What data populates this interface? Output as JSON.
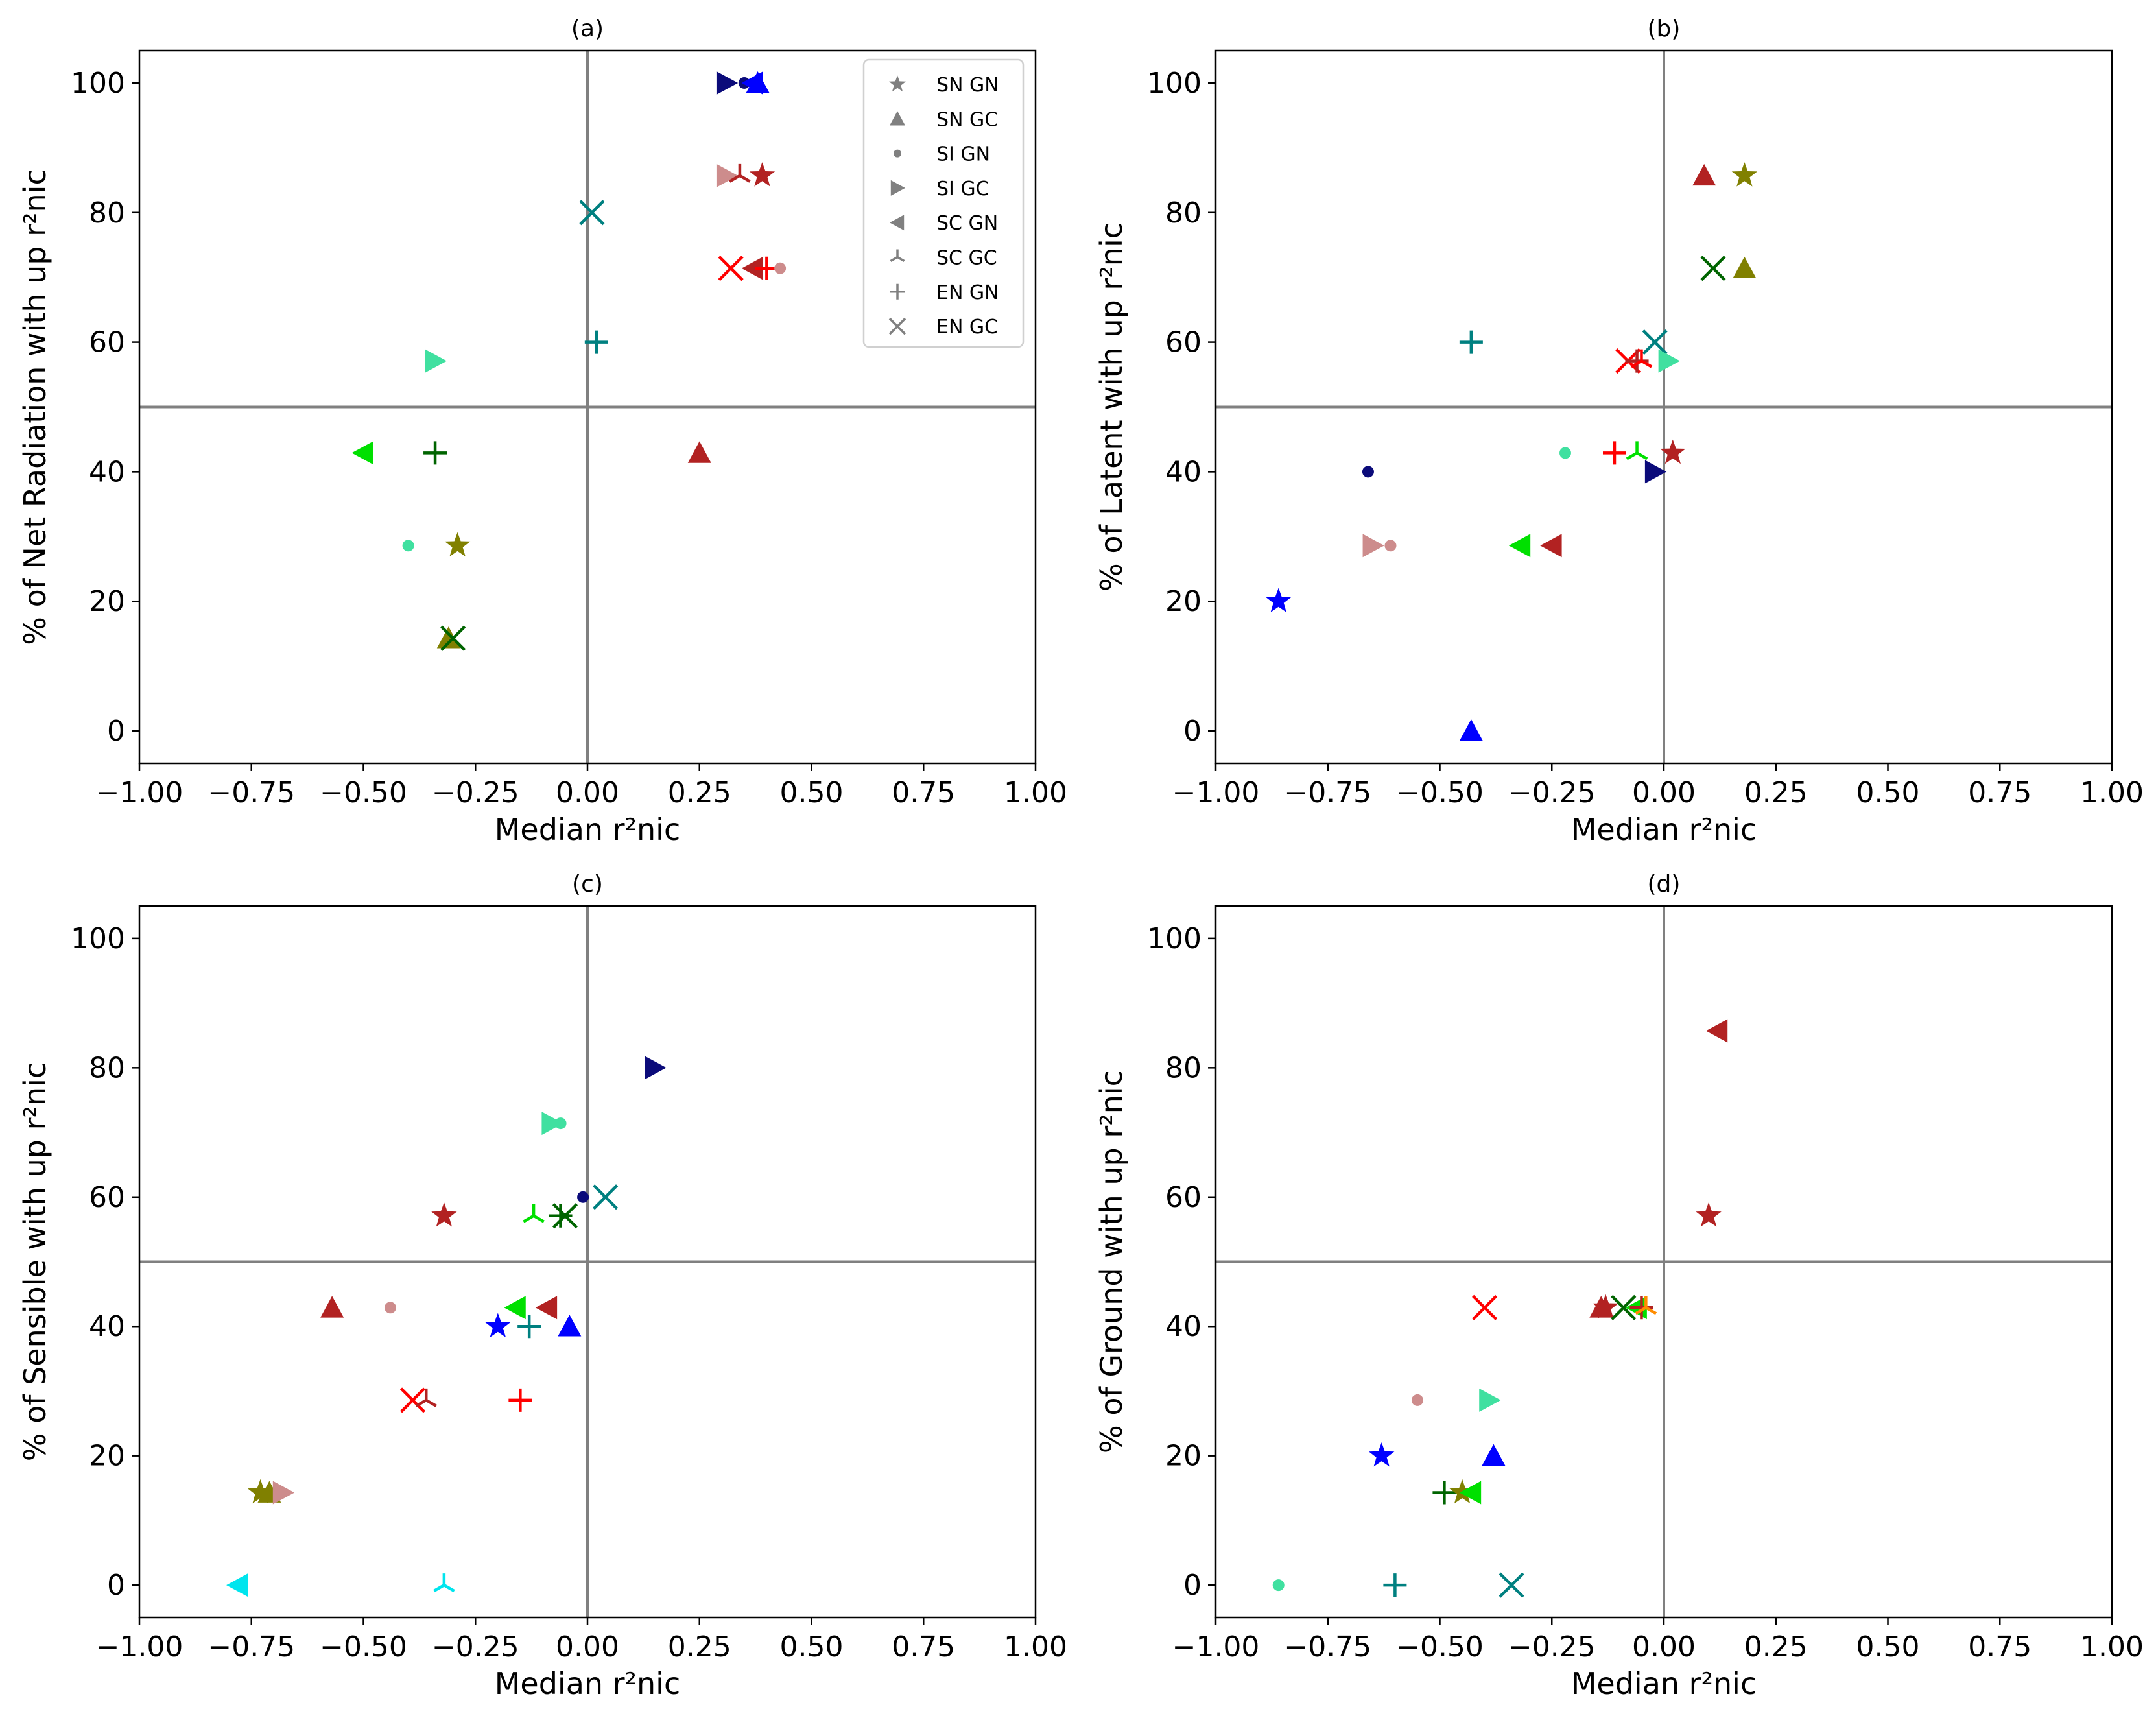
{
  "figure": {
    "xlabel": "Median r²nic",
    "xlim": [
      -1.0,
      1.0
    ],
    "ylim": [
      -5,
      105
    ],
    "xticks": [
      "−1.00",
      "−0.75",
      "−0.50",
      "−0.25",
      "0.00",
      "0.25",
      "0.50",
      "0.75",
      "1.00"
    ],
    "yticks": [
      "0",
      "20",
      "40",
      "60",
      "80",
      "100"
    ],
    "reference_lines": {
      "x": 0,
      "y": 50,
      "color": "#808080"
    }
  },
  "legend": [
    {
      "label": "SN GN",
      "marker": "star"
    },
    {
      "label": "SN GC",
      "marker": "triangle-up"
    },
    {
      "label": "SI GN",
      "marker": "dot"
    },
    {
      "label": "SI GC",
      "marker": "triangle-right"
    },
    {
      "label": "SC GN",
      "marker": "triangle-left"
    },
    {
      "label": "SC GC",
      "marker": "tri-down"
    },
    {
      "label": "EN GN",
      "marker": "plus"
    },
    {
      "label": "EN GC",
      "marker": "x"
    }
  ],
  "legend_color": "#808080",
  "chart_data": [
    {
      "type": "scatter",
      "title": "(a)",
      "xlabel": "Median r²nic",
      "ylabel": "% of Net Radiation with up r²nic",
      "xlim": [
        -1.0,
        1.0
      ],
      "ylim": [
        -5,
        105
      ],
      "points": [
        {
          "x": 0.31,
          "y": 100,
          "marker": "triangle-right",
          "color": "#0b0b7a"
        },
        {
          "x": 0.35,
          "y": 100,
          "marker": "dot",
          "color": "#0b0b7a"
        },
        {
          "x": 0.37,
          "y": 100,
          "marker": "triangle-left",
          "color": "#0000ff"
        },
        {
          "x": 0.38,
          "y": 100,
          "marker": "triangle-up",
          "color": "#0000ff"
        },
        {
          "x": 0.31,
          "y": 85.7,
          "marker": "triangle-right",
          "color": "#cd8c8c"
        },
        {
          "x": 0.34,
          "y": 85.7,
          "marker": "tri-down",
          "color": "#b22222"
        },
        {
          "x": 0.39,
          "y": 85.7,
          "marker": "star",
          "color": "#b22222"
        },
        {
          "x": 0.32,
          "y": 71.4,
          "marker": "x",
          "color": "#ff0000"
        },
        {
          "x": 0.37,
          "y": 71.4,
          "marker": "triangle-left",
          "color": "#b22222"
        },
        {
          "x": 0.4,
          "y": 71.4,
          "marker": "plus",
          "color": "#ff0000"
        },
        {
          "x": 0.43,
          "y": 71.4,
          "marker": "dot",
          "color": "#cd8c8c"
        },
        {
          "x": 0.01,
          "y": 80,
          "marker": "x",
          "color": "#008080"
        },
        {
          "x": 0.02,
          "y": 60,
          "marker": "plus",
          "color": "#008080"
        },
        {
          "x": -0.34,
          "y": 57.1,
          "marker": "triangle-right",
          "color": "#40e0a0"
        },
        {
          "x": -0.5,
          "y": 42.9,
          "marker": "triangle-left",
          "color": "#00e000"
        },
        {
          "x": -0.34,
          "y": 42.9,
          "marker": "plus",
          "color": "#006400"
        },
        {
          "x": 0.25,
          "y": 42.9,
          "marker": "triangle-up",
          "color": "#b22222"
        },
        {
          "x": -0.4,
          "y": 28.6,
          "marker": "dot",
          "color": "#40e0a0"
        },
        {
          "x": -0.29,
          "y": 28.6,
          "marker": "star",
          "color": "#808000"
        },
        {
          "x": -0.31,
          "y": 14.3,
          "marker": "triangle-up",
          "color": "#808000"
        },
        {
          "x": -0.3,
          "y": 14.3,
          "marker": "x",
          "color": "#006400"
        }
      ]
    },
    {
      "type": "scatter",
      "title": "(b)",
      "xlabel": "Median r²nic",
      "ylabel": "% of Latent with up r²nic",
      "xlim": [
        -1.0,
        1.0
      ],
      "ylim": [
        -5,
        105
      ],
      "points": [
        {
          "x": 0.09,
          "y": 85.7,
          "marker": "triangle-up",
          "color": "#b22222"
        },
        {
          "x": 0.18,
          "y": 85.7,
          "marker": "star",
          "color": "#808000"
        },
        {
          "x": 0.11,
          "y": 71.4,
          "marker": "x",
          "color": "#006400"
        },
        {
          "x": 0.18,
          "y": 71.4,
          "marker": "triangle-up",
          "color": "#808000"
        },
        {
          "x": -0.43,
          "y": 60,
          "marker": "plus",
          "color": "#008080"
        },
        {
          "x": -0.02,
          "y": 60,
          "marker": "x",
          "color": "#008080"
        },
        {
          "x": -0.08,
          "y": 57.1,
          "marker": "x",
          "color": "#ff0000"
        },
        {
          "x": -0.06,
          "y": 57.1,
          "marker": "plus",
          "color": "#b22222"
        },
        {
          "x": -0.05,
          "y": 57.1,
          "marker": "tri-down",
          "color": "#ff0000"
        },
        {
          "x": 0.01,
          "y": 57.1,
          "marker": "triangle-right",
          "color": "#40e0a0"
        },
        {
          "x": -0.66,
          "y": 40,
          "marker": "dot",
          "color": "#0b0b7a"
        },
        {
          "x": -0.02,
          "y": 40,
          "marker": "triangle-right",
          "color": "#0b0b7a"
        },
        {
          "x": -0.22,
          "y": 42.9,
          "marker": "dot",
          "color": "#40e0a0"
        },
        {
          "x": -0.11,
          "y": 42.9,
          "marker": "plus",
          "color": "#ff0000"
        },
        {
          "x": -0.06,
          "y": 42.9,
          "marker": "tri-down",
          "color": "#00e000"
        },
        {
          "x": 0.02,
          "y": 42.9,
          "marker": "star",
          "color": "#b22222"
        },
        {
          "x": -0.65,
          "y": 28.6,
          "marker": "triangle-right",
          "color": "#cd8c8c"
        },
        {
          "x": -0.61,
          "y": 28.6,
          "marker": "dot",
          "color": "#cd8c8c"
        },
        {
          "x": -0.32,
          "y": 28.6,
          "marker": "triangle-left",
          "color": "#00e000"
        },
        {
          "x": -0.25,
          "y": 28.6,
          "marker": "triangle-left",
          "color": "#b22222"
        },
        {
          "x": -0.86,
          "y": 20,
          "marker": "star",
          "color": "#0000ff"
        },
        {
          "x": -0.43,
          "y": 0,
          "marker": "triangle-up",
          "color": "#0000ff"
        }
      ]
    },
    {
      "type": "scatter",
      "title": "(c)",
      "xlabel": "Median r²nic",
      "ylabel": "% of Sensible with up r²nic",
      "xlim": [
        -1.0,
        1.0
      ],
      "ylim": [
        -5,
        105
      ],
      "points": [
        {
          "x": 0.15,
          "y": 80,
          "marker": "triangle-right",
          "color": "#0b0b7a"
        },
        {
          "x": -0.08,
          "y": 71.4,
          "marker": "triangle-right",
          "color": "#40e0a0"
        },
        {
          "x": -0.06,
          "y": 71.4,
          "marker": "dot",
          "color": "#40e0a0"
        },
        {
          "x": -0.01,
          "y": 60,
          "marker": "dot",
          "color": "#0b0b7a"
        },
        {
          "x": 0.04,
          "y": 60,
          "marker": "x",
          "color": "#008080"
        },
        {
          "x": -0.32,
          "y": 57.1,
          "marker": "star",
          "color": "#b22222"
        },
        {
          "x": -0.12,
          "y": 57.1,
          "marker": "tri-down",
          "color": "#00e000"
        },
        {
          "x": -0.06,
          "y": 57.1,
          "marker": "plus",
          "color": "#006400"
        },
        {
          "x": -0.05,
          "y": 57.1,
          "marker": "x",
          "color": "#006400"
        },
        {
          "x": -0.57,
          "y": 42.9,
          "marker": "triangle-up",
          "color": "#b22222"
        },
        {
          "x": -0.44,
          "y": 42.9,
          "marker": "dot",
          "color": "#cd8c8c"
        },
        {
          "x": -0.16,
          "y": 42.9,
          "marker": "triangle-left",
          "color": "#00e000"
        },
        {
          "x": -0.09,
          "y": 42.9,
          "marker": "triangle-left",
          "color": "#b22222"
        },
        {
          "x": -0.2,
          "y": 40,
          "marker": "star",
          "color": "#0000ff"
        },
        {
          "x": -0.13,
          "y": 40,
          "marker": "plus",
          "color": "#008080"
        },
        {
          "x": -0.04,
          "y": 40,
          "marker": "triangle-up",
          "color": "#0000ff"
        },
        {
          "x": -0.39,
          "y": 28.6,
          "marker": "x",
          "color": "#ff0000"
        },
        {
          "x": -0.36,
          "y": 28.6,
          "marker": "tri-down",
          "color": "#b22222"
        },
        {
          "x": -0.15,
          "y": 28.6,
          "marker": "plus",
          "color": "#ff0000"
        },
        {
          "x": -0.73,
          "y": 14.3,
          "marker": "star",
          "color": "#808000"
        },
        {
          "x": -0.71,
          "y": 14.3,
          "marker": "triangle-up",
          "color": "#808000"
        },
        {
          "x": -0.68,
          "y": 14.3,
          "marker": "triangle-right",
          "color": "#cd8c8c"
        },
        {
          "x": -0.78,
          "y": 0,
          "marker": "triangle-left",
          "color": "#00e5ee"
        },
        {
          "x": -0.32,
          "y": 0,
          "marker": "tri-down",
          "color": "#00e5ee"
        }
      ]
    },
    {
      "type": "scatter",
      "title": "(d)",
      "xlabel": "Median r²nic",
      "ylabel": "% of Ground with up r²nic",
      "xlim": [
        -1.0,
        1.0
      ],
      "ylim": [
        -5,
        105
      ],
      "points": [
        {
          "x": 0.12,
          "y": 85.7,
          "marker": "triangle-left",
          "color": "#b22222"
        },
        {
          "x": 0.1,
          "y": 57.1,
          "marker": "star",
          "color": "#b22222"
        },
        {
          "x": -0.4,
          "y": 42.9,
          "marker": "x",
          "color": "#ff0000"
        },
        {
          "x": -0.14,
          "y": 42.9,
          "marker": "triangle-up",
          "color": "#b22222"
        },
        {
          "x": -0.13,
          "y": 42.9,
          "marker": "star",
          "color": "#b22222"
        },
        {
          "x": -0.09,
          "y": 42.9,
          "marker": "x",
          "color": "#006400"
        },
        {
          "x": -0.06,
          "y": 42.9,
          "marker": "triangle-left",
          "color": "#00e000"
        },
        {
          "x": -0.05,
          "y": 42.9,
          "marker": "plus",
          "color": "#b22222"
        },
        {
          "x": -0.04,
          "y": 42.9,
          "marker": "tri-down",
          "color": "#ff8c00"
        },
        {
          "x": -0.55,
          "y": 28.6,
          "marker": "dot",
          "color": "#cd8c8c"
        },
        {
          "x": -0.39,
          "y": 28.6,
          "marker": "triangle-right",
          "color": "#40e0a0"
        },
        {
          "x": -0.63,
          "y": 20,
          "marker": "star",
          "color": "#0000ff"
        },
        {
          "x": -0.38,
          "y": 20,
          "marker": "triangle-up",
          "color": "#0000ff"
        },
        {
          "x": -0.49,
          "y": 14.3,
          "marker": "plus",
          "color": "#006400"
        },
        {
          "x": -0.45,
          "y": 14.3,
          "marker": "star",
          "color": "#808000"
        },
        {
          "x": -0.43,
          "y": 14.3,
          "marker": "triangle-left",
          "color": "#00e000"
        },
        {
          "x": -0.86,
          "y": 0,
          "marker": "dot",
          "color": "#40e0a0"
        },
        {
          "x": -0.6,
          "y": 0,
          "marker": "plus",
          "color": "#008080"
        },
        {
          "x": -0.34,
          "y": 0,
          "marker": "x",
          "color": "#008080"
        }
      ]
    }
  ]
}
